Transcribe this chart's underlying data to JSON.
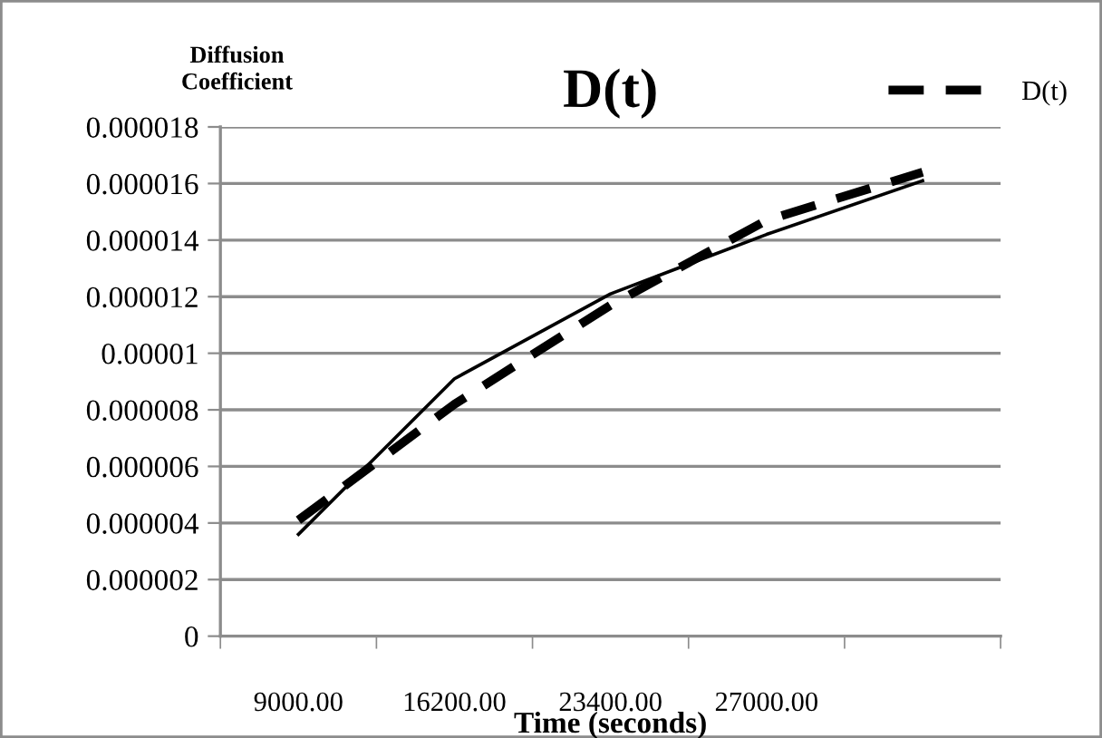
{
  "chart_data": {
    "type": "line",
    "title": "D(t)",
    "xlabel": "Time (seconds)",
    "ylabel": "Diffusion\nCoefficient",
    "categories": [
      "9000.00",
      "16200.00",
      "23400.00",
      "27000.00",
      null
    ],
    "series": [
      {
        "name": "D(t)",
        "color": "#000000",
        "line_style": "dashed",
        "values": [
          4.1e-06,
          8.2e-06,
          1.17e-05,
          1.47e-05,
          1.64e-05
        ]
      },
      {
        "color": "#000000",
        "line_style": "solid",
        "values": [
          3.6e-06,
          9.1e-06,
          1.21e-05,
          1.42e-05,
          1.61e-05
        ]
      }
    ],
    "ylim": [
      0,
      1.8e-05
    ],
    "yticks": [
      0,
      {
        "value": 2e-06,
        "label": "0.000002"
      },
      {
        "value": 4e-06,
        "label": "0.000004"
      },
      {
        "value": 6e-06,
        "label": "0.000006"
      },
      {
        "value": 8e-06,
        "label": "0.000008"
      },
      {
        "value": 1e-05,
        "label": "0.00001"
      },
      {
        "value": 1.2e-05,
        "label": "0.000012"
      },
      {
        "value": 1.4e-05,
        "label": "0.000014"
      },
      {
        "value": 1.6e-05,
        "label": "0.000016"
      },
      {
        "value": 1.8e-05,
        "label": "0.000018"
      }
    ],
    "grid": "y",
    "legend": "top right",
    "marker": "none"
  }
}
